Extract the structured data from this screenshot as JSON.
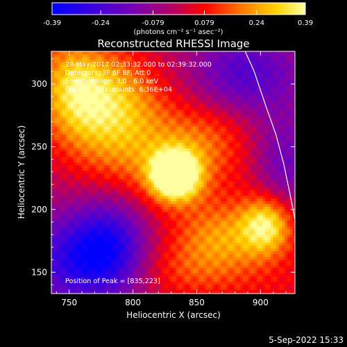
{
  "colorbar": {
    "ticks": [
      "-0.39",
      "-0.24",
      "-0.079",
      "0.079",
      "0.24",
      "0.39"
    ],
    "tick_values": [
      -0.39,
      -0.24,
      -0.079,
      0.079,
      0.24,
      0.39
    ],
    "range": [
      -0.39,
      0.39
    ],
    "units": "(photons cm⁻² s⁻¹ asec⁻²)"
  },
  "title": "Reconstructed RHESSI Image",
  "info": {
    "line1": "28-May-2017 02:33:32.000 to 02:39:32.000",
    "line2": "Detectors: 3F 6F 8F, Att 0",
    "line3": "Energy Range: 3.0 - 6.0 keV",
    "line4": "Clean     Total counts: 6.36E+04",
    "peak": "Position of Peak = [835,223]"
  },
  "footer_timestamp": "5-Sep-2022 15:33",
  "colors": {
    "background": "#000000",
    "text": "#ffffff",
    "colormap": [
      "#0000ff",
      "#4400d8",
      "#7a00b0",
      "#b00068",
      "#ff0000",
      "#ff7a00",
      "#ffd000",
      "#ffffa0"
    ]
  },
  "chart_data": {
    "type": "heatmap",
    "title": "Reconstructed RHESSI Image",
    "xlabel": "Heliocentric X (arcsec)",
    "ylabel": "Heliocentric Y (arcsec)",
    "xlim": [
      736,
      927
    ],
    "ylim": [
      133,
      326
    ],
    "x_ticks": [
      750,
      800,
      850,
      900
    ],
    "y_ticks": [
      150,
      200,
      250,
      300
    ],
    "value_range": [
      -0.39,
      0.39
    ],
    "peak": [
      835,
      223
    ],
    "limb_line": [
      [
        888,
        326
      ],
      [
        895,
        310
      ],
      [
        905,
        280
      ],
      [
        912,
        260
      ],
      [
        918,
        237
      ],
      [
        923,
        213
      ],
      [
        927,
        192
      ]
    ],
    "sources": [
      {
        "x": 833,
        "y": 227,
        "sx": 13,
        "sy": 13,
        "amp": 0.56
      },
      {
        "x": 815,
        "y": 243,
        "sx": 42,
        "sy": 24,
        "amp": 0.12
      },
      {
        "x": 775,
        "y": 285,
        "sx": 30,
        "sy": 28,
        "amp": 0.28
      },
      {
        "x": 753,
        "y": 300,
        "sx": 16,
        "sy": 24,
        "amp": 0.12
      },
      {
        "x": 905,
        "y": 188,
        "sx": 14,
        "sy": 16,
        "amp": 0.32
      },
      {
        "x": 870,
        "y": 178,
        "sx": 24,
        "sy": 18,
        "amp": 0.16
      },
      {
        "x": 860,
        "y": 258,
        "sx": 24,
        "sy": 20,
        "amp": 0.1
      },
      {
        "x": 840,
        "y": 150,
        "sx": 32,
        "sy": 18,
        "amp": 0.12
      },
      {
        "x": 782,
        "y": 175,
        "sx": 20,
        "sy": 26,
        "amp": -0.2
      },
      {
        "x": 760,
        "y": 160,
        "sx": 30,
        "sy": 24,
        "amp": -0.26
      },
      {
        "x": 888,
        "y": 308,
        "sx": 28,
        "sy": 22,
        "amp": -0.18
      },
      {
        "x": 918,
        "y": 235,
        "sx": 16,
        "sy": 28,
        "amp": -0.14
      }
    ]
  }
}
